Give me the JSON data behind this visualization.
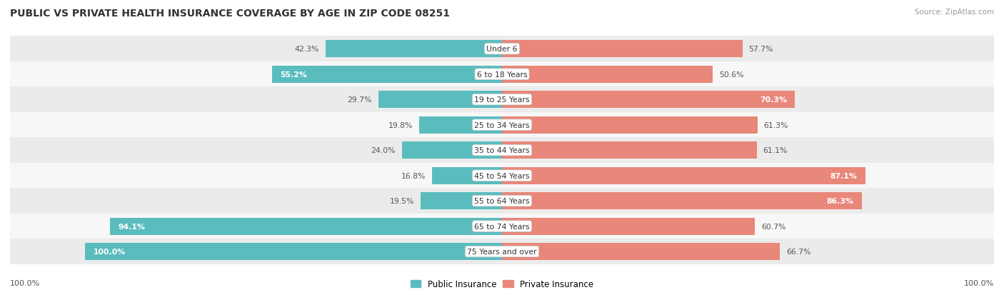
{
  "title": "PUBLIC VS PRIVATE HEALTH INSURANCE COVERAGE BY AGE IN ZIP CODE 08251",
  "source": "Source: ZipAtlas.com",
  "categories": [
    "Under 6",
    "6 to 18 Years",
    "19 to 25 Years",
    "25 to 34 Years",
    "35 to 44 Years",
    "45 to 54 Years",
    "55 to 64 Years",
    "65 to 74 Years",
    "75 Years and over"
  ],
  "public_values": [
    42.3,
    55.2,
    29.7,
    19.8,
    24.0,
    16.8,
    19.5,
    94.1,
    100.0
  ],
  "private_values": [
    57.7,
    50.6,
    70.3,
    61.3,
    61.1,
    87.1,
    86.3,
    60.7,
    66.7
  ],
  "public_color": "#5bbcbe",
  "private_color": "#e8877a",
  "row_bg_colors": [
    "#ebebeb",
    "#f7f7f7"
  ],
  "title_color": "#333333",
  "source_color": "#999999",
  "value_color_inside": "#ffffff",
  "value_color_outside": "#555555",
  "legend_public": "Public Insurance",
  "legend_private": "Private Insurance",
  "axis_label": "100.0%"
}
